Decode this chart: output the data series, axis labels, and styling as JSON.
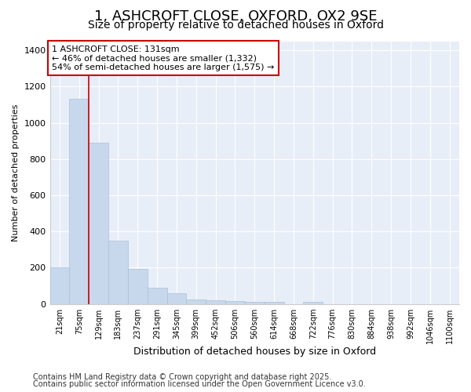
{
  "title_line1": "1, ASHCROFT CLOSE, OXFORD, OX2 9SE",
  "title_line2": "Size of property relative to detached houses in Oxford",
  "xlabel": "Distribution of detached houses by size in Oxford",
  "ylabel": "Number of detached properties",
  "bar_color": "#c8d8ec",
  "bar_edge_color": "#a8c0d8",
  "background_color": "#ffffff",
  "axes_bg_color": "#e8eef8",
  "grid_color": "#ffffff",
  "vline_color": "#cc0000",
  "annotation_box_color": "#cc0000",
  "categories": [
    "21sqm",
    "75sqm",
    "129sqm",
    "183sqm",
    "237sqm",
    "291sqm",
    "345sqm",
    "399sqm",
    "452sqm",
    "506sqm",
    "560sqm",
    "614sqm",
    "668sqm",
    "722sqm",
    "776sqm",
    "830sqm",
    "884sqm",
    "938sqm",
    "992sqm",
    "1046sqm",
    "1100sqm"
  ],
  "values": [
    200,
    1130,
    890,
    350,
    195,
    90,
    60,
    25,
    20,
    15,
    10,
    10,
    0,
    10,
    0,
    0,
    0,
    0,
    0,
    0,
    0
  ],
  "ylim_max": 1450,
  "yticks": [
    0,
    200,
    400,
    600,
    800,
    1000,
    1200,
    1400
  ],
  "vline_position": 1.5,
  "annotation_text": "1 ASHCROFT CLOSE: 131sqm\n← 46% of detached houses are smaller (1,332)\n54% of semi-detached houses are larger (1,575) →",
  "footnote_line1": "Contains HM Land Registry data © Crown copyright and database right 2025.",
  "footnote_line2": "Contains public sector information licensed under the Open Government Licence v3.0.",
  "title_fontsize": 13,
  "subtitle_fontsize": 10,
  "ylabel_fontsize": 8,
  "xlabel_fontsize": 9,
  "tick_fontsize": 7,
  "annotation_fontsize": 8,
  "footnote_fontsize": 7
}
